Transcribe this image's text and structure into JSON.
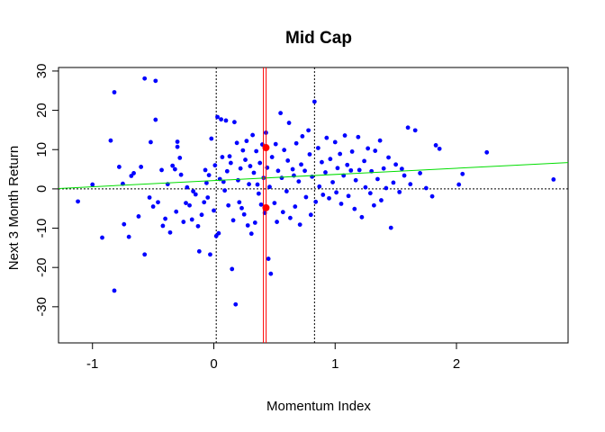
{
  "chart_data": {
    "type": "scatter",
    "title": "Mid Cap",
    "xlabel": "Momentum Index",
    "ylabel": "Next 3 Month Return",
    "xlim": [
      -1.28,
      2.92
    ],
    "ylim": [
      -39.2,
      30.9
    ],
    "x_ticks": [
      -1,
      0,
      1,
      2
    ],
    "x_tick_labels": [
      "-1",
      "0",
      "1",
      "2"
    ],
    "y_ticks": [
      -30,
      -20,
      -10,
      0,
      10,
      20,
      30
    ],
    "y_tick_labels": [
      "-30",
      "-20",
      "-10",
      "0",
      "10",
      "20",
      "30"
    ],
    "grid": false,
    "colors": {
      "points": "#0000ff",
      "trend": "#00dd00",
      "marker": "#ff0000",
      "reference": "#000000"
    },
    "points": [
      [
        -1.12,
        -3.2
      ],
      [
        -1.0,
        1.1
      ],
      [
        -0.92,
        -12.4
      ],
      [
        -0.85,
        12.3
      ],
      [
        -0.82,
        24.6
      ],
      [
        -0.82,
        -25.9
      ],
      [
        -0.78,
        5.6
      ],
      [
        -0.75,
        1.3
      ],
      [
        -0.74,
        -9.0
      ],
      [
        -0.7,
        -12.2
      ],
      [
        -0.68,
        3.3
      ],
      [
        -0.66,
        4.0
      ],
      [
        -0.62,
        -7.0
      ],
      [
        -0.6,
        5.6
      ],
      [
        -0.57,
        28.1
      ],
      [
        -0.57,
        -16.7
      ],
      [
        -0.53,
        -2.2
      ],
      [
        -0.52,
        11.9
      ],
      [
        -0.5,
        -4.5
      ],
      [
        -0.48,
        27.5
      ],
      [
        -0.48,
        17.6
      ],
      [
        -0.46,
        -3.4
      ],
      [
        -0.43,
        4.8
      ],
      [
        -0.42,
        -9.4
      ],
      [
        -0.4,
        -7.6
      ],
      [
        -0.38,
        1.2
      ],
      [
        -0.36,
        -11.1
      ],
      [
        -0.34,
        5.9
      ],
      [
        -0.32,
        5.0
      ],
      [
        -0.31,
        -5.8
      ],
      [
        -0.3,
        12.0
      ],
      [
        -0.3,
        10.7
      ],
      [
        -0.28,
        7.9
      ],
      [
        -0.27,
        3.6
      ],
      [
        -0.25,
        -8.4
      ],
      [
        -0.23,
        -3.6
      ],
      [
        -0.22,
        0.4
      ],
      [
        -0.2,
        -4.2
      ],
      [
        -0.18,
        -7.8
      ],
      [
        -0.17,
        -0.6
      ],
      [
        -0.15,
        -1.4
      ],
      [
        -0.13,
        -9.5
      ],
      [
        -0.12,
        -15.9
      ],
      [
        -0.1,
        -6.6
      ],
      [
        -0.08,
        -3.4
      ],
      [
        -0.07,
        4.8
      ],
      [
        -0.06,
        1.5
      ],
      [
        -0.05,
        -2.2
      ],
      [
        -0.04,
        3.5
      ],
      [
        -0.03,
        -16.7
      ],
      [
        -0.02,
        12.8
      ],
      [
        0.0,
        -5.5
      ],
      [
        0.01,
        6.0
      ],
      [
        0.02,
        -12.0
      ],
      [
        0.03,
        18.3
      ],
      [
        0.04,
        -11.3
      ],
      [
        0.05,
        2.5
      ],
      [
        0.06,
        17.7
      ],
      [
        0.07,
        8.1
      ],
      [
        0.08,
        1.8
      ],
      [
        0.09,
        -0.4
      ],
      [
        0.1,
        17.4
      ],
      [
        0.11,
        4.5
      ],
      [
        0.12,
        -4.2
      ],
      [
        0.13,
        8.3
      ],
      [
        0.14,
        6.6
      ],
      [
        0.15,
        -20.4
      ],
      [
        0.16,
        -8.0
      ],
      [
        0.17,
        17.0
      ],
      [
        0.18,
        -29.4
      ],
      [
        0.19,
        11.7
      ],
      [
        0.2,
        2.2
      ],
      [
        0.21,
        -3.4
      ],
      [
        0.22,
        5.2
      ],
      [
        0.23,
        -4.9
      ],
      [
        0.24,
        9.8
      ],
      [
        0.25,
        -6.5
      ],
      [
        0.26,
        7.4
      ],
      [
        0.27,
        12.2
      ],
      [
        0.28,
        -9.3
      ],
      [
        0.29,
        1.2
      ],
      [
        0.3,
        5.8
      ],
      [
        0.31,
        -11.4
      ],
      [
        0.32,
        13.7
      ],
      [
        0.33,
        4.1
      ],
      [
        0.34,
        -8.6
      ],
      [
        0.35,
        9.6
      ],
      [
        0.36,
        1.1
      ],
      [
        0.37,
        -1.2
      ],
      [
        0.38,
        6.6
      ],
      [
        0.39,
        -4.0
      ],
      [
        0.4,
        11.3
      ],
      [
        0.41,
        2.8
      ],
      [
        0.42,
        -6.1
      ],
      [
        0.43,
        14.3
      ],
      [
        0.44,
        5.4
      ],
      [
        0.45,
        -17.8
      ],
      [
        0.46,
        0.5
      ],
      [
        0.47,
        -21.6
      ],
      [
        0.48,
        8.1
      ],
      [
        0.5,
        -3.6
      ],
      [
        0.51,
        11.4
      ],
      [
        0.52,
        -8.4
      ],
      [
        0.53,
        4.6
      ],
      [
        0.55,
        19.3
      ],
      [
        0.56,
        2.8
      ],
      [
        0.57,
        -5.9
      ],
      [
        0.58,
        9.9
      ],
      [
        0.6,
        -0.6
      ],
      [
        0.61,
        7.2
      ],
      [
        0.62,
        16.8
      ],
      [
        0.63,
        -7.4
      ],
      [
        0.65,
        5.0
      ],
      [
        0.66,
        3.4
      ],
      [
        0.67,
        -4.5
      ],
      [
        0.68,
        11.6
      ],
      [
        0.7,
        1.9
      ],
      [
        0.71,
        -9.1
      ],
      [
        0.72,
        6.2
      ],
      [
        0.73,
        13.4
      ],
      [
        0.75,
        4.6
      ],
      [
        0.76,
        -2.1
      ],
      [
        0.78,
        14.9
      ],
      [
        0.79,
        8.8
      ],
      [
        0.8,
        -6.6
      ],
      [
        0.81,
        3.1
      ],
      [
        0.83,
        22.2
      ],
      [
        0.84,
        -3.3
      ],
      [
        0.86,
        10.4
      ],
      [
        0.87,
        0.6
      ],
      [
        0.89,
        6.8
      ],
      [
        0.9,
        -1.5
      ],
      [
        0.92,
        4.2
      ],
      [
        0.93,
        13.0
      ],
      [
        0.95,
        -2.4
      ],
      [
        0.96,
        7.6
      ],
      [
        0.98,
        1.7
      ],
      [
        1.0,
        11.9
      ],
      [
        1.01,
        -0.9
      ],
      [
        1.02,
        5.3
      ],
      [
        1.04,
        8.9
      ],
      [
        1.05,
        -3.8
      ],
      [
        1.07,
        3.4
      ],
      [
        1.08,
        13.6
      ],
      [
        1.1,
        6.1
      ],
      [
        1.11,
        -1.8
      ],
      [
        1.13,
        4.7
      ],
      [
        1.14,
        9.5
      ],
      [
        1.16,
        -5.1
      ],
      [
        1.17,
        2.2
      ],
      [
        1.19,
        13.2
      ],
      [
        1.2,
        4.8
      ],
      [
        1.22,
        -7.2
      ],
      [
        1.24,
        7.1
      ],
      [
        1.25,
        0.4
      ],
      [
        1.27,
        10.3
      ],
      [
        1.29,
        -1.1
      ],
      [
        1.3,
        4.5
      ],
      [
        1.32,
        -4.2
      ],
      [
        1.33,
        9.7
      ],
      [
        1.35,
        2.5
      ],
      [
        1.37,
        12.3
      ],
      [
        1.38,
        -2.9
      ],
      [
        1.4,
        5.2
      ],
      [
        1.42,
        0.2
      ],
      [
        1.44,
        8.0
      ],
      [
        1.46,
        -9.9
      ],
      [
        1.48,
        1.6
      ],
      [
        1.5,
        6.2
      ],
      [
        1.53,
        -0.8
      ],
      [
        1.55,
        5.1
      ],
      [
        1.57,
        3.4
      ],
      [
        1.6,
        15.6
      ],
      [
        1.62,
        1.2
      ],
      [
        1.66,
        14.9
      ],
      [
        1.7,
        4.0
      ],
      [
        1.75,
        0.2
      ],
      [
        1.8,
        -1.9
      ],
      [
        1.83,
        11.1
      ],
      [
        1.86,
        10.2
      ],
      [
        2.02,
        1.1
      ],
      [
        2.05,
        3.8
      ],
      [
        2.25,
        9.3
      ],
      [
        2.8,
        2.4
      ]
    ],
    "trend_line": {
      "x": [
        -1.28,
        2.92
      ],
      "y": [
        0.1,
        6.7
      ]
    },
    "hline": 0,
    "vlines_dotted": [
      0.02,
      0.83
    ],
    "vline_red": 0.42,
    "red_points": [
      [
        0.43,
        10.5
      ],
      [
        0.43,
        -4.8
      ]
    ]
  }
}
